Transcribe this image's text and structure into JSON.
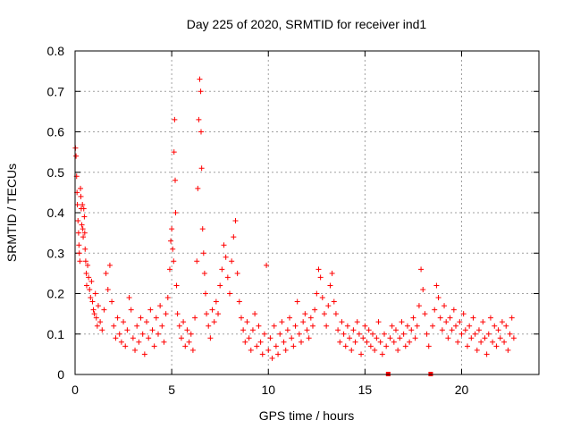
{
  "chart_data": {
    "type": "scatter",
    "title": "Day 225 of 2020, SRMTID for receiver ind1",
    "xlabel": "GPS time / hours",
    "ylabel": "SRMTID / TECUs",
    "xlim": [
      0,
      24
    ],
    "ylim": [
      0,
      0.8
    ],
    "x_ticks": [
      0,
      5,
      10,
      15,
      20
    ],
    "x_tick_labels": [
      "0",
      "5",
      "10",
      "15",
      "20"
    ],
    "y_ticks": [
      0,
      0.1,
      0.2,
      0.3,
      0.4,
      0.5,
      0.6,
      0.7,
      0.8
    ],
    "y_tick_labels": [
      "0",
      "0.1",
      "0.2",
      "0.3",
      "0.4",
      "0.5",
      "0.6",
      "0.7",
      "0.8"
    ],
    "grid": true,
    "marker_color": "#ff0000",
    "series": [
      {
        "name": "SRMTID",
        "marker": "plus",
        "points": [
          [
            0.02,
            0.56
          ],
          [
            0.05,
            0.54
          ],
          [
            0.08,
            0.49
          ],
          [
            0.1,
            0.45
          ],
          [
            0.12,
            0.42
          ],
          [
            0.15,
            0.38
          ],
          [
            0.18,
            0.35
          ],
          [
            0.2,
            0.32
          ],
          [
            0.22,
            0.3
          ],
          [
            0.25,
            0.28
          ],
          [
            0.28,
            0.46
          ],
          [
            0.3,
            0.44
          ],
          [
            0.32,
            0.41
          ],
          [
            0.35,
            0.37
          ],
          [
            0.38,
            0.42
          ],
          [
            0.4,
            0.36
          ],
          [
            0.42,
            0.34
          ],
          [
            0.45,
            0.41
          ],
          [
            0.48,
            0.39
          ],
          [
            0.5,
            0.35
          ],
          [
            0.52,
            0.31
          ],
          [
            0.55,
            0.28
          ],
          [
            0.58,
            0.25
          ],
          [
            0.6,
            0.22
          ],
          [
            0.65,
            0.27
          ],
          [
            0.7,
            0.24
          ],
          [
            0.75,
            0.21
          ],
          [
            0.8,
            0.19
          ],
          [
            0.85,
            0.23
          ],
          [
            0.9,
            0.18
          ],
          [
            0.95,
            0.16
          ],
          [
            1.0,
            0.15
          ],
          [
            1.05,
            0.2
          ],
          [
            1.1,
            0.14
          ],
          [
            1.15,
            0.12
          ],
          [
            1.2,
            0.17
          ],
          [
            1.3,
            0.13
          ],
          [
            1.4,
            0.11
          ],
          [
            1.5,
            0.16
          ],
          [
            1.6,
            0.25
          ],
          [
            1.7,
            0.21
          ],
          [
            1.8,
            0.27
          ],
          [
            1.9,
            0.18
          ],
          [
            2.0,
            0.12
          ],
          [
            2.1,
            0.09
          ],
          [
            2.2,
            0.14
          ],
          [
            2.3,
            0.1
          ],
          [
            2.4,
            0.08
          ],
          [
            2.5,
            0.13
          ],
          [
            2.6,
            0.07
          ],
          [
            2.7,
            0.11
          ],
          [
            2.8,
            0.19
          ],
          [
            2.9,
            0.16
          ],
          [
            3.0,
            0.09
          ],
          [
            3.1,
            0.06
          ],
          [
            3.2,
            0.12
          ],
          [
            3.3,
            0.08
          ],
          [
            3.4,
            0.14
          ],
          [
            3.5,
            0.1
          ],
          [
            3.6,
            0.05
          ],
          [
            3.7,
            0.13
          ],
          [
            3.8,
            0.09
          ],
          [
            3.9,
            0.16
          ],
          [
            4.0,
            0.11
          ],
          [
            4.1,
            0.07
          ],
          [
            4.2,
            0.14
          ],
          [
            4.3,
            0.1
          ],
          [
            4.4,
            0.17
          ],
          [
            4.5,
            0.12
          ],
          [
            4.6,
            0.08
          ],
          [
            4.7,
            0.15
          ],
          [
            4.8,
            0.19
          ],
          [
            4.9,
            0.26
          ],
          [
            4.95,
            0.33
          ],
          [
            5.0,
            0.36
          ],
          [
            5.05,
            0.31
          ],
          [
            5.1,
            0.28
          ],
          [
            5.12,
            0.55
          ],
          [
            5.15,
            0.63
          ],
          [
            5.18,
            0.48
          ],
          [
            5.2,
            0.4
          ],
          [
            5.25,
            0.22
          ],
          [
            5.3,
            0.15
          ],
          [
            5.4,
            0.12
          ],
          [
            5.5,
            0.09
          ],
          [
            5.6,
            0.13
          ],
          [
            5.7,
            0.07
          ],
          [
            5.8,
            0.11
          ],
          [
            5.9,
            0.08
          ],
          [
            6.0,
            0.1
          ],
          [
            6.1,
            0.06
          ],
          [
            6.2,
            0.14
          ],
          [
            6.3,
            0.28
          ],
          [
            6.35,
            0.46
          ],
          [
            6.4,
            0.63
          ],
          [
            6.45,
            0.73
          ],
          [
            6.5,
            0.7
          ],
          [
            6.52,
            0.6
          ],
          [
            6.55,
            0.51
          ],
          [
            6.6,
            0.36
          ],
          [
            6.65,
            0.3
          ],
          [
            6.7,
            0.25
          ],
          [
            6.75,
            0.2
          ],
          [
            6.8,
            0.15
          ],
          [
            6.9,
            0.12
          ],
          [
            7.0,
            0.09
          ],
          [
            7.1,
            0.16
          ],
          [
            7.2,
            0.13
          ],
          [
            7.3,
            0.18
          ],
          [
            7.4,
            0.15
          ],
          [
            7.5,
            0.22
          ],
          [
            7.6,
            0.26
          ],
          [
            7.7,
            0.32
          ],
          [
            7.8,
            0.29
          ],
          [
            7.9,
            0.24
          ],
          [
            8.0,
            0.2
          ],
          [
            8.1,
            0.28
          ],
          [
            8.2,
            0.34
          ],
          [
            8.3,
            0.38
          ],
          [
            8.4,
            0.25
          ],
          [
            8.5,
            0.18
          ],
          [
            8.6,
            0.14
          ],
          [
            8.7,
            0.11
          ],
          [
            8.8,
            0.08
          ],
          [
            8.9,
            0.13
          ],
          [
            9.0,
            0.09
          ],
          [
            9.1,
            0.06
          ],
          [
            9.2,
            0.11
          ],
          [
            9.3,
            0.15
          ],
          [
            9.4,
            0.07
          ],
          [
            9.5,
            0.12
          ],
          [
            9.6,
            0.08
          ],
          [
            9.7,
            0.05
          ],
          [
            9.8,
            0.1
          ],
          [
            9.9,
            0.27
          ],
          [
            10.0,
            0.06
          ],
          [
            10.1,
            0.09
          ],
          [
            10.2,
            0.04
          ],
          [
            10.3,
            0.12
          ],
          [
            10.4,
            0.07
          ],
          [
            10.5,
            0.05
          ],
          [
            10.6,
            0.1
          ],
          [
            10.7,
            0.13
          ],
          [
            10.8,
            0.08
          ],
          [
            10.9,
            0.06
          ],
          [
            11.0,
            0.11
          ],
          [
            11.1,
            0.14
          ],
          [
            11.2,
            0.09
          ],
          [
            11.3,
            0.07
          ],
          [
            11.4,
            0.12
          ],
          [
            11.5,
            0.18
          ],
          [
            11.6,
            0.1
          ],
          [
            11.7,
            0.08
          ],
          [
            11.8,
            0.13
          ],
          [
            11.9,
            0.15
          ],
          [
            12.0,
            0.11
          ],
          [
            12.1,
            0.09
          ],
          [
            12.2,
            0.14
          ],
          [
            12.3,
            0.12
          ],
          [
            12.4,
            0.16
          ],
          [
            12.5,
            0.2
          ],
          [
            12.6,
            0.26
          ],
          [
            12.7,
            0.24
          ],
          [
            12.8,
            0.19
          ],
          [
            12.9,
            0.15
          ],
          [
            13.0,
            0.12
          ],
          [
            13.1,
            0.17
          ],
          [
            13.2,
            0.22
          ],
          [
            13.3,
            0.25
          ],
          [
            13.4,
            0.18
          ],
          [
            13.5,
            0.15
          ],
          [
            13.6,
            0.11
          ],
          [
            13.7,
            0.08
          ],
          [
            13.8,
            0.13
          ],
          [
            13.9,
            0.1
          ],
          [
            14.0,
            0.07
          ],
          [
            14.1,
            0.12
          ],
          [
            14.2,
            0.09
          ],
          [
            14.3,
            0.06
          ],
          [
            14.4,
            0.11
          ],
          [
            14.5,
            0.08
          ],
          [
            14.6,
            0.13
          ],
          [
            14.7,
            0.1
          ],
          [
            14.8,
            0.05
          ],
          [
            14.9,
            0.09
          ],
          [
            15.0,
            0.12
          ],
          [
            15.1,
            0.08
          ],
          [
            15.2,
            0.11
          ],
          [
            15.3,
            0.07
          ],
          [
            15.4,
            0.1
          ],
          [
            15.5,
            0.06
          ],
          [
            15.6,
            0.09
          ],
          [
            15.7,
            0.13
          ],
          [
            15.8,
            0.08
          ],
          [
            15.9,
            0.05
          ],
          [
            16.0,
            0.1
          ],
          [
            16.1,
            0.07
          ],
          [
            16.2,
            0.0
          ],
          [
            16.3,
            0.09
          ],
          [
            16.4,
            0.12
          ],
          [
            16.5,
            0.08
          ],
          [
            16.6,
            0.11
          ],
          [
            16.7,
            0.06
          ],
          [
            16.8,
            0.09
          ],
          [
            16.9,
            0.13
          ],
          [
            17.0,
            0.1
          ],
          [
            17.1,
            0.07
          ],
          [
            17.2,
            0.12
          ],
          [
            17.3,
            0.08
          ],
          [
            17.4,
            0.11
          ],
          [
            17.5,
            0.14
          ],
          [
            17.6,
            0.09
          ],
          [
            17.7,
            0.12
          ],
          [
            17.8,
            0.17
          ],
          [
            17.9,
            0.26
          ],
          [
            18.0,
            0.21
          ],
          [
            18.1,
            0.15
          ],
          [
            18.2,
            0.1
          ],
          [
            18.3,
            0.07
          ],
          [
            18.4,
            0.0
          ],
          [
            18.5,
            0.12
          ],
          [
            18.6,
            0.16
          ],
          [
            18.7,
            0.22
          ],
          [
            18.8,
            0.19
          ],
          [
            18.9,
            0.14
          ],
          [
            19.0,
            0.11
          ],
          [
            19.1,
            0.17
          ],
          [
            19.2,
            0.13
          ],
          [
            19.3,
            0.09
          ],
          [
            19.4,
            0.14
          ],
          [
            19.5,
            0.11
          ],
          [
            19.6,
            0.16
          ],
          [
            19.7,
            0.12
          ],
          [
            19.8,
            0.08
          ],
          [
            19.9,
            0.13
          ],
          [
            20.0,
            0.1
          ],
          [
            20.1,
            0.15
          ],
          [
            20.2,
            0.11
          ],
          [
            20.3,
            0.07
          ],
          [
            20.4,
            0.12
          ],
          [
            20.5,
            0.09
          ],
          [
            20.6,
            0.14
          ],
          [
            20.7,
            0.1
          ],
          [
            20.8,
            0.06
          ],
          [
            20.9,
            0.11
          ],
          [
            21.0,
            0.08
          ],
          [
            21.1,
            0.13
          ],
          [
            21.2,
            0.09
          ],
          [
            21.3,
            0.05
          ],
          [
            21.4,
            0.1
          ],
          [
            21.5,
            0.14
          ],
          [
            21.6,
            0.08
          ],
          [
            21.7,
            0.12
          ],
          [
            21.8,
            0.07
          ],
          [
            21.9,
            0.11
          ],
          [
            22.0,
            0.09
          ],
          [
            22.1,
            0.13
          ],
          [
            22.2,
            0.08
          ],
          [
            22.3,
            0.12
          ],
          [
            22.4,
            0.06
          ],
          [
            22.5,
            0.1
          ],
          [
            22.6,
            0.14
          ],
          [
            22.7,
            0.09
          ]
        ]
      }
    ]
  }
}
